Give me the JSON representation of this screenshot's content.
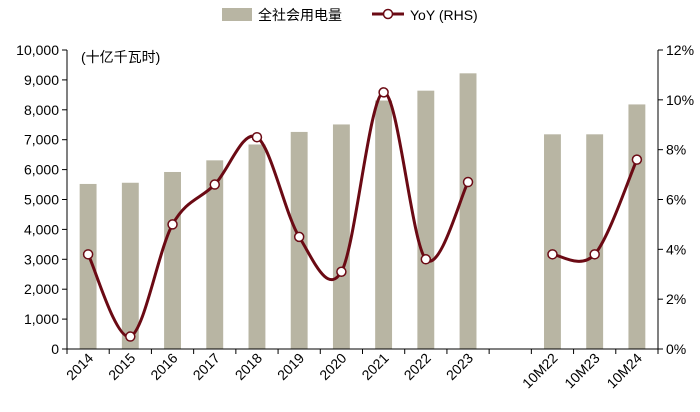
{
  "chart_data": {
    "type": "bar",
    "categories": [
      "2014",
      "2015",
      "2016",
      "2017",
      "2018",
      "2019",
      "2020",
      "2021",
      "2022",
      "2023",
      "",
      "10M22",
      "10M23",
      "10M24"
    ],
    "series": [
      {
        "name": "全社会用电量",
        "type": "bar",
        "axis": "left",
        "color": "#b8b5a3",
        "values": [
          5520,
          5560,
          5920,
          6310,
          6840,
          7260,
          7510,
          8310,
          8640,
          9220,
          null,
          7180,
          7180,
          8180
        ]
      },
      {
        "name": "YoY (RHS)",
        "type": "line",
        "axis": "right",
        "color": "#6b0a14",
        "values": [
          3.8,
          0.5,
          5.0,
          6.6,
          8.5,
          4.5,
          3.1,
          10.3,
          3.6,
          6.7,
          null,
          3.8,
          3.8,
          7.6
        ]
      }
    ],
    "y_left": {
      "min": 0,
      "max": 10000,
      "step": 1000,
      "unit_label": "(十亿千瓦时)"
    },
    "y_right": {
      "min": 0,
      "max": 12,
      "step": 2,
      "suffix": "%"
    },
    "legend_position": "top-center",
    "grid": false
  }
}
